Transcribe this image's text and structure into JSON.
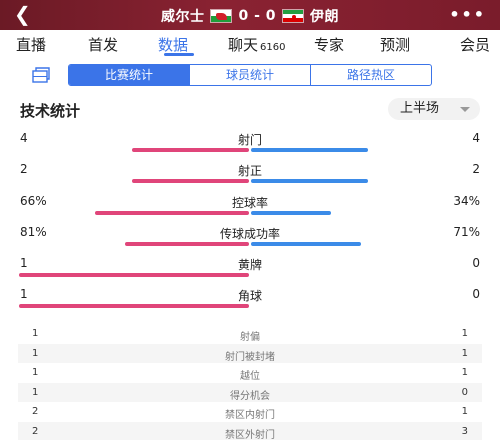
{
  "header": {
    "back_icon": "chevron-left-icon",
    "home_team": "威尔士",
    "score": "0 - 0",
    "away_team": "伊朗",
    "more_icon": "more-dots-icon"
  },
  "nav": {
    "tabs": [
      {
        "label": "直播",
        "sub": ""
      },
      {
        "label": "首发",
        "sub": ""
      },
      {
        "label": "数据",
        "sub": ""
      },
      {
        "label": "聊天",
        "sub": "6160"
      },
      {
        "label": "专家",
        "sub": ""
      },
      {
        "label": "预测",
        "sub": ""
      },
      {
        "label": "会员",
        "sub": ""
      }
    ],
    "active": "数据"
  },
  "subtabs": {
    "items": [
      "比赛统计",
      "球员统计",
      "路径热区"
    ],
    "active": "比赛统计"
  },
  "section": {
    "title": "技术统计",
    "period": "上半场"
  },
  "stats": [
    {
      "name": "射门",
      "home": "4",
      "away": "4",
      "home_frac": 0.5,
      "away_frac": 0.5
    },
    {
      "name": "射正",
      "home": "2",
      "away": "2",
      "home_frac": 0.5,
      "away_frac": 0.5
    },
    {
      "name": "控球率",
      "home": "66%",
      "away": "34%",
      "home_frac": 0.66,
      "away_frac": 0.34
    },
    {
      "name": "传球成功率",
      "home": "81%",
      "away": "71%",
      "home_frac": 0.53,
      "away_frac": 0.47
    },
    {
      "name": "黄牌",
      "home": "1",
      "away": "0",
      "home_frac": 1.0,
      "away_frac": 0.0
    },
    {
      "name": "角球",
      "home": "1",
      "away": "0",
      "home_frac": 1.0,
      "away_frac": 0.0
    }
  ],
  "details": [
    {
      "name": "射偏",
      "home": "1",
      "away": "1"
    },
    {
      "name": "射门被封堵",
      "home": "1",
      "away": "1"
    },
    {
      "name": "越位",
      "home": "1",
      "away": "1"
    },
    {
      "name": "得分机会",
      "home": "1",
      "away": "0"
    },
    {
      "name": "禁区内射门",
      "home": "2",
      "away": "1"
    },
    {
      "name": "禁区外射门",
      "home": "2",
      "away": "3"
    }
  ],
  "colors": {
    "header_bg": "#7a1c2b",
    "accent": "#3b74e8",
    "home_bar": "#e0457a",
    "away_bar": "#3b8be8"
  }
}
